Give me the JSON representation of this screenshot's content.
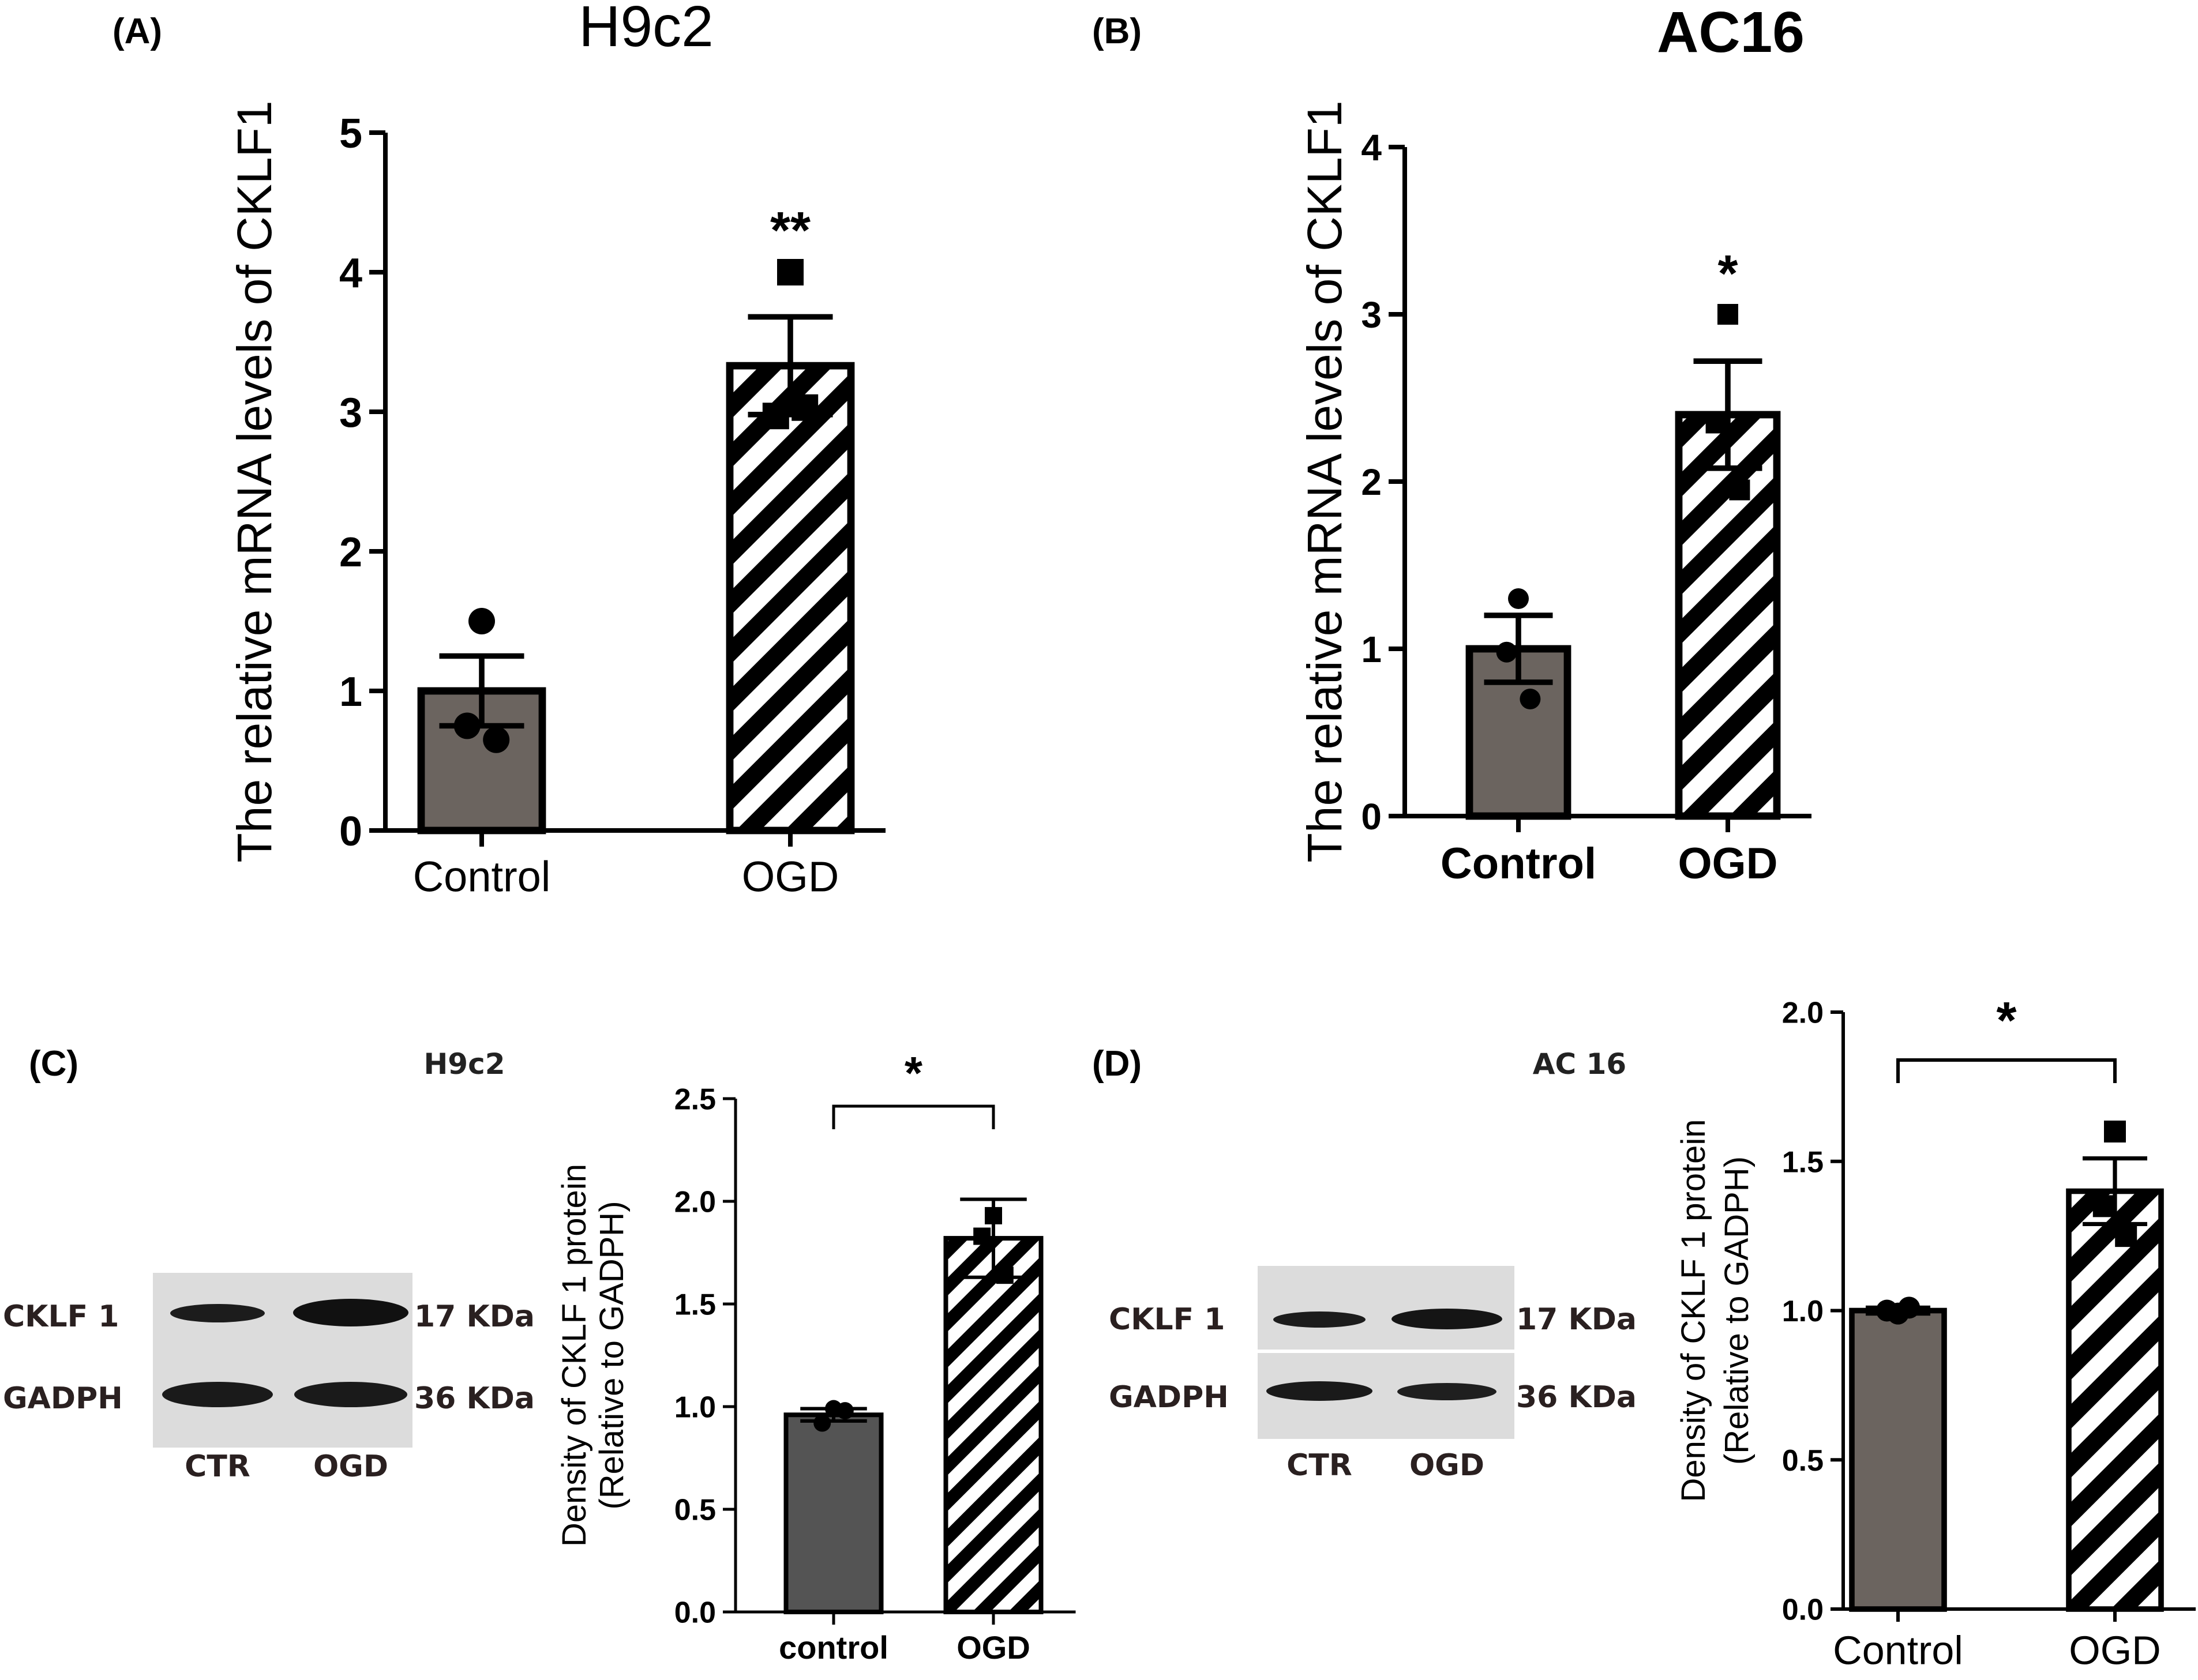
{
  "colors": {
    "bar_fill": "#6b645f",
    "bar_fill_dark": "#545454",
    "stroke": "#000000",
    "blot_bg": "#dcdcdc",
    "band": "#1c1c1c"
  },
  "panels": {
    "A": {
      "label": "(A)",
      "chart_data": {
        "type": "bar",
        "title": "H9c2",
        "ylabel": "The relative mRNA levels of CKLF1",
        "categories": [
          "Control",
          "OGD"
        ],
        "values": [
          1.0,
          3.33
        ],
        "errors": [
          0.25,
          0.35
        ],
        "points": [
          [
            1.5,
            0.75,
            0.65
          ],
          [
            4.0,
            2.97,
            3.03
          ]
        ],
        "ylim": [
          0,
          5
        ],
        "yticks": [
          "0",
          "1",
          "2",
          "3",
          "4",
          "5"
        ],
        "significance": "**"
      }
    },
    "B": {
      "label": "(B)",
      "chart_data": {
        "type": "bar",
        "title": "AC16",
        "ylabel": "The relative mRNA levels of CKLF1",
        "categories": [
          "Control",
          "OGD"
        ],
        "values": [
          1.0,
          2.4
        ],
        "errors": [
          0.2,
          0.32
        ],
        "points": [
          [
            1.3,
            0.98,
            0.7
          ],
          [
            3.0,
            2.35,
            1.95
          ]
        ],
        "ylim": [
          0,
          4
        ],
        "yticks": [
          "0",
          "1",
          "2",
          "3",
          "4"
        ],
        "significance": "*"
      }
    },
    "C": {
      "label": "(C)",
      "blot": {
        "cell_line": "H9c2",
        "rows": [
          {
            "protein": "CKLF 1",
            "size": "17 KDa"
          },
          {
            "protein": "GADPH",
            "size": "36 KDa"
          }
        ],
        "lanes": [
          "CTR",
          "OGD"
        ]
      },
      "chart_data": {
        "type": "bar",
        "ylabel_line1": "Density of CKLF 1 protein",
        "ylabel_line2": "(Relative to GADPH)",
        "categories": [
          "control",
          "OGD"
        ],
        "values": [
          0.96,
          1.82
        ],
        "errors": [
          0.03,
          0.19
        ],
        "points": [
          [
            0.99,
            0.92,
            0.98
          ],
          [
            1.93,
            1.83,
            1.64
          ]
        ],
        "ylim": [
          0,
          2.5
        ],
        "yticks": [
          "0.0",
          "0.5",
          "1.0",
          "1.5",
          "2.0",
          "2.5"
        ],
        "significance": "*"
      }
    },
    "D": {
      "label": "(D)",
      "blot": {
        "cell_line": "AC 16",
        "rows": [
          {
            "protein": "CKLF 1",
            "size": "17 KDa"
          },
          {
            "protein": "GADPH",
            "size": "36 KDa"
          }
        ],
        "lanes": [
          "CTR",
          "OGD"
        ]
      },
      "chart_data": {
        "type": "bar",
        "ylabel_line1": "Density of CKLF 1 protein",
        "ylabel_line2": "(Relative to GADPH)",
        "categories": [
          "Control",
          "OGD"
        ],
        "values": [
          1.0,
          1.4
        ],
        "errors": [
          0.01,
          0.11
        ],
        "points": [
          [
            0.99,
            1.0,
            1.01
          ],
          [
            1.6,
            1.35,
            1.25
          ]
        ],
        "ylim": [
          0,
          2.0
        ],
        "yticks": [
          "0.0",
          "0.5",
          "1.0",
          "1.5",
          "2.0"
        ],
        "significance": "*"
      }
    }
  }
}
